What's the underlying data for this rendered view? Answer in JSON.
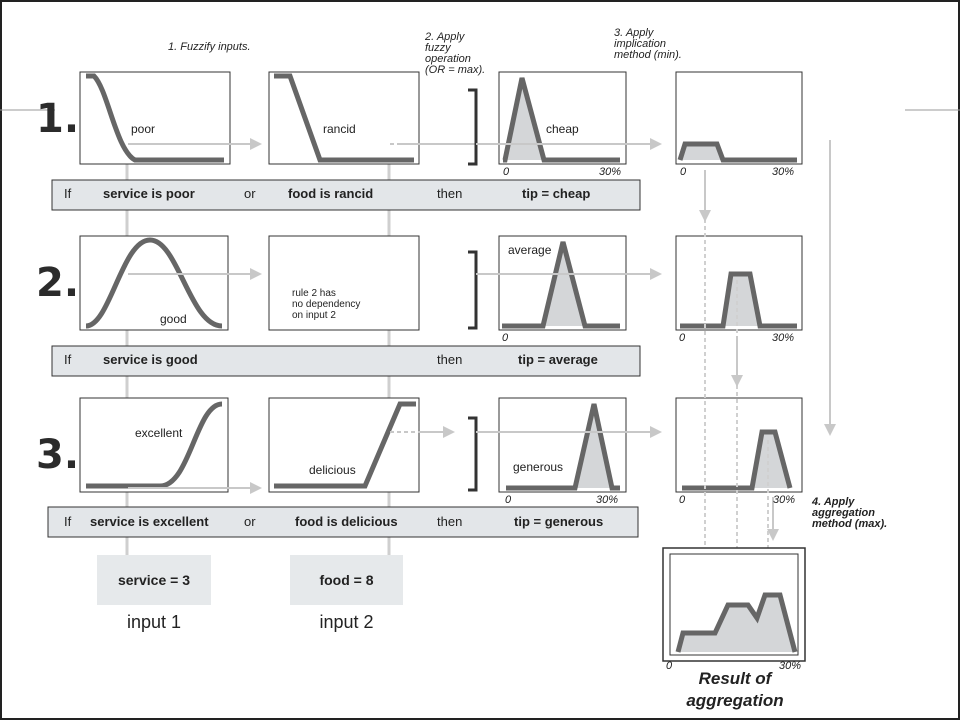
{
  "steps": {
    "s1": "1. Fuzzify inputs.",
    "s2": [
      "2. Apply",
      "fuzzy",
      "operation",
      "(OR = max)."
    ],
    "s3": [
      "3. Apply",
      "implication",
      "method (min)."
    ],
    "s4": [
      "4. Apply",
      "aggregation",
      "method (max)."
    ]
  },
  "rows": [
    {
      "num": "1.",
      "in1": "poor",
      "in2": "rancid",
      "out": "cheap",
      "rule": [
        "If",
        "service is poor",
        "or",
        "food is rancid",
        "then",
        "tip = cheap"
      ]
    },
    {
      "num": "2.",
      "in1": "good",
      "in2": "rule 2 has\nno dependency\non input 2",
      "out": "average",
      "rule": [
        "If",
        "service is good",
        "",
        "",
        "then",
        "tip = average"
      ]
    },
    {
      "num": "3.",
      "in1": "excellent",
      "in2": "delicious",
      "out": "generous",
      "rule": [
        "If",
        "service is excellent",
        "or",
        "food is delicious",
        "then",
        "tip = generous"
      ]
    }
  ],
  "axis": {
    "min": "0",
    "max": "30%"
  },
  "inputs": {
    "service_box": "service = 3",
    "food_box": "food = 8",
    "input1": "input 1",
    "input2": "input 2"
  },
  "result": [
    "Result of",
    "aggregation"
  ],
  "colors": {
    "curve": "#666666",
    "fill": "#d4d6d8",
    "guide": "#c8c8c8",
    "rulebar": "#e3e6e9"
  }
}
